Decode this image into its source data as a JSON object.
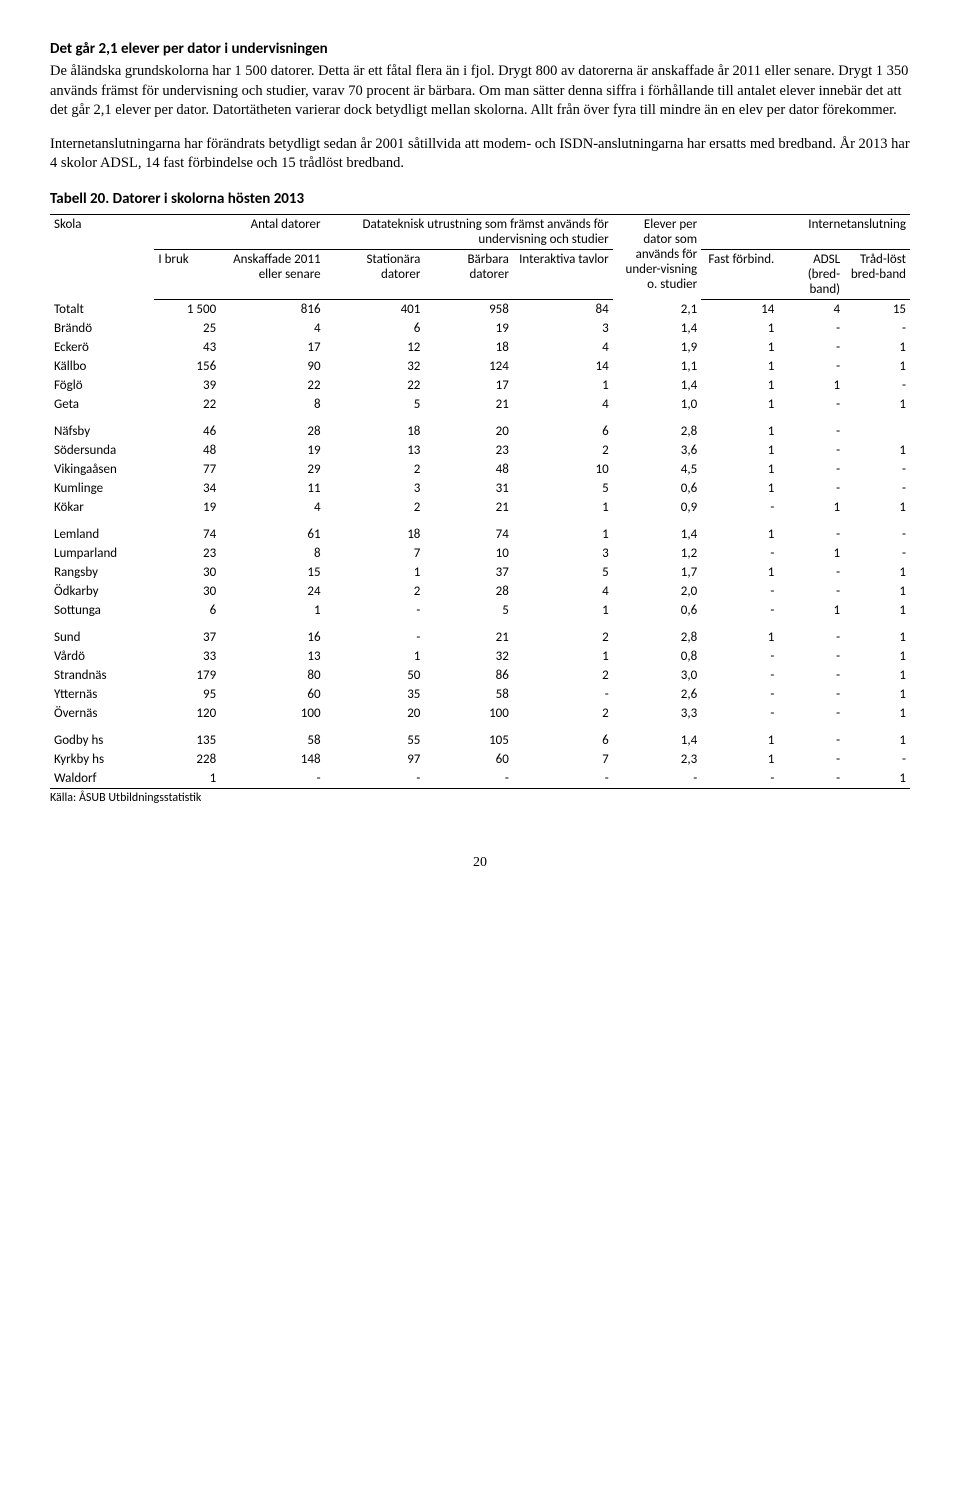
{
  "heading": "Det går 2,1 elever per dator i undervisningen",
  "para1": "De åländska grundskolorna har 1 500 datorer. Detta är ett fåtal flera än i fjol. Drygt 800 av datorerna är anskaffade år 2011 eller senare. Drygt 1 350 används främst för undervisning och studier, varav 70 procent är bärbara. Om man sätter denna siffra i förhållande till antalet elever innebär det att det går 2,1 elever per dator. Datortätheten varierar dock betydligt mellan skolorna. Allt från över fyra till mindre än en elev per dator förekommer.",
  "para2": "Internetanslutningarna har förändrats betydligt sedan år 2001 såtillvida att modem- och ISDN-anslutningarna har ersatts med bredband. År 2013 har 4 skolor ADSL, 14 fast förbindelse och 15 trådlöst bredband.",
  "table_caption": "Tabell 20. Datorer i skolorna hösten 2013",
  "header": {
    "skola": "Skola",
    "antal_datorer": "Antal datorer",
    "datateknisk": "Datateknisk utrustning som främst används för undervisning och studier",
    "elever_per": "Elever per dator som används för under-visning o. studier",
    "internet": "Internetanslutning",
    "i_bruk": "I bruk",
    "anskaffade": "Anskaffade 2011 eller senare",
    "stationara": "Stationära datorer",
    "barbara": "Bärbara datorer",
    "interaktiva": "Interaktiva tavlor",
    "fast": "Fast förbind.",
    "adsl": "ADSL (bred-band)",
    "tradlost": "Tråd-löst bred-band"
  },
  "rows": [
    {
      "g": 0,
      "school": "Totalt",
      "ibruk": "1 500",
      "ansk": "816",
      "stat": "401",
      "barb": "958",
      "inter": "84",
      "elev": "2,1",
      "fast": "14",
      "adsl": "4",
      "trad": "15"
    },
    {
      "g": 0,
      "school": "Brändö",
      "ibruk": "25",
      "ansk": "4",
      "stat": "6",
      "barb": "19",
      "inter": "3",
      "elev": "1,4",
      "fast": "1",
      "adsl": "-",
      "trad": "-"
    },
    {
      "g": 0,
      "school": "Eckerö",
      "ibruk": "43",
      "ansk": "17",
      "stat": "12",
      "barb": "18",
      "inter": "4",
      "elev": "1,9",
      "fast": "1",
      "adsl": "-",
      "trad": "1"
    },
    {
      "g": 0,
      "school": "Källbo",
      "ibruk": "156",
      "ansk": "90",
      "stat": "32",
      "barb": "124",
      "inter": "14",
      "elev": "1,1",
      "fast": "1",
      "adsl": "-",
      "trad": "1"
    },
    {
      "g": 0,
      "school": "Föglö",
      "ibruk": "39",
      "ansk": "22",
      "stat": "22",
      "barb": "17",
      "inter": "1",
      "elev": "1,4",
      "fast": "1",
      "adsl": "1",
      "trad": "-"
    },
    {
      "g": 0,
      "school": "Geta",
      "ibruk": "22",
      "ansk": "8",
      "stat": "5",
      "barb": "21",
      "inter": "4",
      "elev": "1,0",
      "fast": "1",
      "adsl": "-",
      "trad": "1"
    },
    {
      "g": 1,
      "school": "Näfsby",
      "ibruk": "46",
      "ansk": "28",
      "stat": "18",
      "barb": "20",
      "inter": "6",
      "elev": "2,8",
      "fast": "1",
      "adsl": "-",
      "trad": ""
    },
    {
      "g": 1,
      "school": "Södersunda",
      "ibruk": "48",
      "ansk": "19",
      "stat": "13",
      "barb": "23",
      "inter": "2",
      "elev": "3,6",
      "fast": "1",
      "adsl": "-",
      "trad": "1"
    },
    {
      "g": 1,
      "school": "Vikingaåsen",
      "ibruk": "77",
      "ansk": "29",
      "stat": "2",
      "barb": "48",
      "inter": "10",
      "elev": "4,5",
      "fast": "1",
      "adsl": "-",
      "trad": "-"
    },
    {
      "g": 1,
      "school": "Kumlinge",
      "ibruk": "34",
      "ansk": "11",
      "stat": "3",
      "barb": "31",
      "inter": "5",
      "elev": "0,6",
      "fast": "1",
      "adsl": "-",
      "trad": "-"
    },
    {
      "g": 1,
      "school": "Kökar",
      "ibruk": "19",
      "ansk": "4",
      "stat": "2",
      "barb": "21",
      "inter": "1",
      "elev": "0,9",
      "fast": "-",
      "adsl": "1",
      "trad": "1"
    },
    {
      "g": 2,
      "school": "Lemland",
      "ibruk": "74",
      "ansk": "61",
      "stat": "18",
      "barb": "74",
      "inter": "1",
      "elev": "1,4",
      "fast": "1",
      "adsl": "-",
      "trad": "-"
    },
    {
      "g": 2,
      "school": "Lumparland",
      "ibruk": "23",
      "ansk": "8",
      "stat": "7",
      "barb": "10",
      "inter": "3",
      "elev": "1,2",
      "fast": "-",
      "adsl": "1",
      "trad": "-"
    },
    {
      "g": 2,
      "school": "Rangsby",
      "ibruk": "30",
      "ansk": "15",
      "stat": "1",
      "barb": "37",
      "inter": "5",
      "elev": "1,7",
      "fast": "1",
      "adsl": "-",
      "trad": "1"
    },
    {
      "g": 2,
      "school": "Ödkarby",
      "ibruk": "30",
      "ansk": "24",
      "stat": "2",
      "barb": "28",
      "inter": "4",
      "elev": "2,0",
      "fast": "-",
      "adsl": "-",
      "trad": "1"
    },
    {
      "g": 2,
      "school": "Sottunga",
      "ibruk": "6",
      "ansk": "1",
      "stat": "-",
      "barb": "5",
      "inter": "1",
      "elev": "0,6",
      "fast": "-",
      "adsl": "1",
      "trad": "1"
    },
    {
      "g": 3,
      "school": "Sund",
      "ibruk": "37",
      "ansk": "16",
      "stat": "-",
      "barb": "21",
      "inter": "2",
      "elev": "2,8",
      "fast": "1",
      "adsl": "-",
      "trad": "1"
    },
    {
      "g": 3,
      "school": "Vårdö",
      "ibruk": "33",
      "ansk": "13",
      "stat": "1",
      "barb": "32",
      "inter": "1",
      "elev": "0,8",
      "fast": "-",
      "adsl": "-",
      "trad": "1"
    },
    {
      "g": 3,
      "school": "Strandnäs",
      "ibruk": "179",
      "ansk": "80",
      "stat": "50",
      "barb": "86",
      "inter": "2",
      "elev": "3,0",
      "fast": "-",
      "adsl": "-",
      "trad": "1"
    },
    {
      "g": 3,
      "school": "Ytternäs",
      "ibruk": "95",
      "ansk": "60",
      "stat": "35",
      "barb": "58",
      "inter": "-",
      "elev": "2,6",
      "fast": "-",
      "adsl": "-",
      "trad": "1"
    },
    {
      "g": 3,
      "school": "Övernäs",
      "ibruk": "120",
      "ansk": "100",
      "stat": "20",
      "barb": "100",
      "inter": "2",
      "elev": "3,3",
      "fast": "-",
      "adsl": "-",
      "trad": "1"
    },
    {
      "g": 4,
      "school": "Godby hs",
      "ibruk": "135",
      "ansk": "58",
      "stat": "55",
      "barb": "105",
      "inter": "6",
      "elev": "1,4",
      "fast": "1",
      "adsl": "-",
      "trad": "1"
    },
    {
      "g": 4,
      "school": "Kyrkby hs",
      "ibruk": "228",
      "ansk": "148",
      "stat": "97",
      "barb": "60",
      "inter": "7",
      "elev": "2,3",
      "fast": "1",
      "adsl": "-",
      "trad": "-"
    },
    {
      "g": 4,
      "school": "Waldorf",
      "ibruk": "1",
      "ansk": "-",
      "stat": "-",
      "barb": "-",
      "inter": "-",
      "elev": "-",
      "fast": "-",
      "adsl": "-",
      "trad": "1"
    }
  ],
  "source": "Källa: ÅSUB Utbildningsstatistik",
  "page_number": "20"
}
